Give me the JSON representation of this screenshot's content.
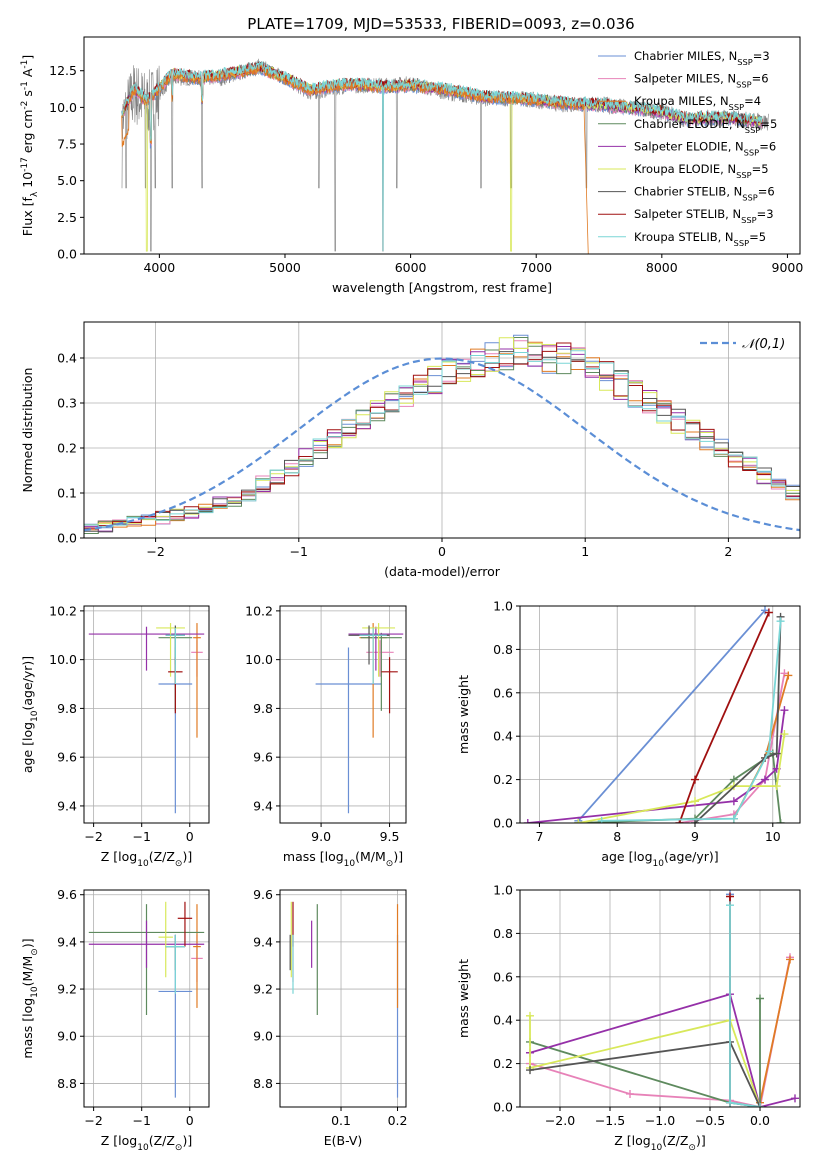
{
  "figure_title": "PLATE=1709, MJD=53533, FIBERID=0093, z=0.036",
  "series_styles": [
    {
      "name": "Chabrier MILES, N$_{SSP}$=3",
      "color": "#6a8fd4"
    },
    {
      "name": "Salpeter MILES, N$_{SSP}$=6",
      "color": "#e782b8"
    },
    {
      "name": "Kroupa MILES, N$_{SSP}$=4",
      "color": "#e07b24"
    },
    {
      "name": "Chabrier ELODIE, N$_{SSP}$=5",
      "color": "#5e8a5e"
    },
    {
      "name": "Salpeter ELODIE, N$_{SSP}$=6",
      "color": "#9530a8"
    },
    {
      "name": "Kroupa ELODIE, N$_{SSP}$=5",
      "color": "#d8e85a"
    },
    {
      "name": "Chabrier STELIB, N$_{SSP}$=6",
      "color": "#555555"
    },
    {
      "name": "Salpeter STELIB, N$_{SSP}$=3",
      "color": "#a01010"
    },
    {
      "name": "Kroupa STELIB, N$_{SSP}$=5",
      "color": "#7ad6d6"
    }
  ],
  "chart_data": [
    {
      "id": "spectrum",
      "type": "line",
      "title": "PLATE=1709, MJD=53533, FIBERID=0093, z=0.036",
      "xlabel": "wavelength [Angstrom, rest frame]",
      "ylabel": "Flux [f$_\\lambda$ 10$^{-17}$ erg cm$^{-2}$ s$^{-1}$ A$^{-1}$]",
      "xlim": [
        3400,
        9100
      ],
      "ylim": [
        0,
        14.8
      ],
      "xticks": [
        4000,
        5000,
        6000,
        7000,
        8000,
        9000
      ],
      "yticks": [
        0.0,
        2.5,
        5.0,
        7.5,
        10.0,
        12.5
      ],
      "legend": "upper right",
      "data_note": "observed spectrum (grey) with nine model fits; flux approx. 8-13 across 3700-8800 A",
      "observed": {
        "x": [
          3700,
          3800,
          3900,
          4000,
          4100,
          4300,
          4500,
          4800,
          5000,
          5200,
          5500,
          5800,
          6000,
          6300,
          6600,
          6900,
          7200,
          7500,
          7800,
          8000,
          8200,
          8500,
          8800
        ],
        "y": [
          9.0,
          11.0,
          10.2,
          11.0,
          12.0,
          12.0,
          12.0,
          12.8,
          12.0,
          11.0,
          11.5,
          11.5,
          11.6,
          11.0,
          10.6,
          10.6,
          10.2,
          10.2,
          9.9,
          9.7,
          9.2,
          9.3,
          9.0
        ]
      },
      "dips": [
        3700,
        3735,
        3890,
        3933,
        3968,
        4102,
        4340,
        5270,
        5400,
        5780,
        5890,
        6560,
        6800,
        7400
      ],
      "model_mean": {
        "x": [
          3700,
          3800,
          3900,
          4000,
          4100,
          4300,
          4500,
          4800,
          5000,
          5200,
          5500,
          5800,
          6000,
          6300,
          6600,
          6900,
          7200,
          7400
        ],
        "y": [
          9.5,
          11.3,
          10.4,
          11.3,
          12.3,
          12.0,
          12.2,
          12.7,
          12.0,
          11.2,
          11.6,
          11.4,
          11.5,
          11.2,
          10.7,
          10.6,
          10.3,
          10.2
        ]
      },
      "model_range_end": [
        8800,
        8800,
        7420,
        8800,
        8800,
        8800,
        8800,
        8800,
        8800
      ]
    },
    {
      "id": "residual_hist",
      "type": "bar",
      "xlabel": "(data-model)/error",
      "ylabel": "Normed distribution",
      "xlim": [
        -2.5,
        2.5
      ],
      "ylim": [
        0,
        0.48
      ],
      "xticks": [
        -2,
        -1,
        0,
        1,
        2
      ],
      "yticks": [
        0.0,
        0.1,
        0.2,
        0.3,
        0.4
      ],
      "grid": true,
      "legend": "upper right",
      "gaussian_label": "$\\mathcal{N}(0,1)$",
      "bin_width": 0.1,
      "bin_start": -2.5,
      "base_values": [
        0.02,
        0.025,
        0.03,
        0.035,
        0.04,
        0.045,
        0.05,
        0.055,
        0.065,
        0.075,
        0.085,
        0.1,
        0.12,
        0.14,
        0.16,
        0.18,
        0.2,
        0.22,
        0.24,
        0.26,
        0.28,
        0.3,
        0.31,
        0.33,
        0.35,
        0.37,
        0.38,
        0.39,
        0.4,
        0.41,
        0.42,
        0.41,
        0.4,
        0.4,
        0.39,
        0.38,
        0.36,
        0.34,
        0.32,
        0.3,
        0.28,
        0.26,
        0.24,
        0.22,
        0.2,
        0.18,
        0.16,
        0.14,
        0.12,
        0.1,
        0.09,
        0.08,
        0.07,
        0.06,
        0.05,
        0.045,
        0.04,
        0.035,
        0.03,
        0.028
      ]
    },
    {
      "id": "age_vs_Z",
      "type": "scatter",
      "xlabel": "Z [log$_{10}$(Z/Z$_\\odot$)]",
      "ylabel": "age  [log$_{10}$(age/yr)]",
      "xlim": [
        -2.2,
        0.4
      ],
      "ylim": [
        9.33,
        10.22
      ],
      "xticks": [
        -2,
        -1,
        0
      ],
      "yticks": [
        9.4,
        9.6,
        9.8,
        10.0,
        10.2
      ],
      "grid": true,
      "points": [
        {
          "series": 0,
          "x": -0.3,
          "xerr": 0.35,
          "y": 9.9,
          "yerr": [
            0.53,
            0.15
          ]
        },
        {
          "series": 1,
          "x": 0.15,
          "xerr": 0.12,
          "y": 10.03,
          "yerr": [
            0.1,
            0.05
          ]
        },
        {
          "series": 2,
          "x": 0.15,
          "xerr": 0.08,
          "y": 10.09,
          "yerr": [
            0.41,
            0.06
          ]
        },
        {
          "series": 3,
          "x": -0.3,
          "xerr": 0.35,
          "y": 10.09,
          "yerr": [
            0.3,
            0.02
          ]
        },
        {
          "series": 4,
          "x": -0.9,
          "xerr": 1.2,
          "y": 10.105,
          "yerr": [
            0.15,
            0.03
          ]
        },
        {
          "series": 5,
          "x": -0.4,
          "xerr": 0.3,
          "y": 10.13,
          "yerr": [
            0.2,
            0.02
          ]
        },
        {
          "series": 6,
          "x": -0.3,
          "xerr": 0.2,
          "y": 10.1,
          "yerr": [
            0.12,
            0.04
          ]
        },
        {
          "series": 7,
          "x": -0.3,
          "xerr": 0.15,
          "y": 9.95,
          "yerr": [
            0.17,
            0.06
          ]
        },
        {
          "series": 8,
          "x": -0.3,
          "xerr": 0.2,
          "y": 10.1,
          "yerr": [
            0.2,
            0.03
          ]
        }
      ]
    },
    {
      "id": "age_vs_mass",
      "type": "scatter",
      "xlabel": "mass [log$_{10}$(M/M$_\\odot$)]",
      "ylabel": "",
      "xlim": [
        8.7,
        9.62
      ],
      "ylim": [
        9.33,
        10.22
      ],
      "xticks": [
        9.0,
        9.5
      ],
      "yticks": [
        9.4,
        9.6,
        9.8,
        10.0,
        10.2
      ],
      "grid": true,
      "points": [
        {
          "series": 0,
          "x": 9.2,
          "xerr": 0.24,
          "y": 9.9,
          "yerr": [
            0.53,
            0.15
          ]
        },
        {
          "series": 1,
          "x": 9.43,
          "xerr": 0.1,
          "y": 10.03,
          "yerr": [
            0.1,
            0.05
          ]
        },
        {
          "series": 2,
          "x": 9.38,
          "xerr": 0.1,
          "y": 10.09,
          "yerr": [
            0.41,
            0.06
          ]
        },
        {
          "series": 3,
          "x": 9.44,
          "xerr": 0.15,
          "y": 10.09,
          "yerr": [
            0.3,
            0.02
          ]
        },
        {
          "series": 4,
          "x": 9.4,
          "xerr": 0.2,
          "y": 10.105,
          "yerr": [
            0.15,
            0.03
          ]
        },
        {
          "series": 5,
          "x": 9.42,
          "xerr": 0.12,
          "y": 10.13,
          "yerr": [
            0.2,
            0.02
          ]
        },
        {
          "series": 6,
          "x": 9.35,
          "xerr": 0.15,
          "y": 10.1,
          "yerr": [
            0.12,
            0.04
          ]
        },
        {
          "series": 7,
          "x": 9.5,
          "xerr": 0.06,
          "y": 9.95,
          "yerr": [
            0.17,
            0.06
          ]
        },
        {
          "series": 8,
          "x": 9.38,
          "xerr": 0.1,
          "y": 10.1,
          "yerr": [
            0.2,
            0.03
          ]
        }
      ]
    },
    {
      "id": "weight_vs_age",
      "type": "line",
      "xlabel": "age  [log$_{10}$(age/yr)]",
      "ylabel": "mass weight",
      "xlim": [
        6.75,
        10.35
      ],
      "ylim": [
        0,
        1.0
      ],
      "xticks": [
        7,
        8,
        9,
        10
      ],
      "yticks": [
        0.0,
        0.2,
        0.4,
        0.6,
        0.8,
        1.0
      ],
      "grid": true,
      "series": [
        {
          "series": 0,
          "x": [
            7.5,
            9.9
          ],
          "y": [
            0.01,
            0.98
          ]
        },
        {
          "series": 1,
          "x": [
            8.8,
            9.5,
            9.9,
            10.15
          ],
          "y": [
            0.0,
            0.04,
            0.2,
            0.69
          ]
        },
        {
          "series": 2,
          "x": [
            9.5,
            9.9,
            10.2
          ],
          "y": [
            0.02,
            0.3,
            0.68
          ]
        },
        {
          "series": 3,
          "x": [
            7.5,
            9.0,
            9.5,
            10.0,
            10.1
          ],
          "y": [
            0.0,
            0.02,
            0.2,
            0.32,
            0.0
          ]
        },
        {
          "series": 4,
          "x": [
            6.85,
            9.5,
            9.9,
            10.05,
            10.15
          ],
          "y": [
            0.0,
            0.1,
            0.2,
            0.25,
            0.52
          ]
        },
        {
          "series": 5,
          "x": [
            7.5,
            9.0,
            9.5,
            10.05,
            10.15
          ],
          "y": [
            0.0,
            0.1,
            0.17,
            0.17,
            0.41
          ]
        },
        {
          "series": 6,
          "x": [
            9.0,
            9.9,
            10.05,
            10.1
          ],
          "y": [
            0.0,
            0.3,
            0.32,
            0.95
          ]
        },
        {
          "series": 7,
          "x": [
            8.8,
            9.0,
            9.95
          ],
          "y": [
            0.0,
            0.2,
            0.97
          ]
        },
        {
          "series": 8,
          "x": [
            7.8,
            9.5,
            9.95,
            10.1
          ],
          "y": [
            0.01,
            0.02,
            0.33,
            0.93
          ]
        }
      ]
    },
    {
      "id": "mass_vs_Z",
      "type": "scatter",
      "xlabel": "Z [log$_{10}$(Z/Z$_\\odot$)]",
      "ylabel": "mass [log$_{10}$(M/M$_\\odot$)]",
      "xlim": [
        -2.2,
        0.4
      ],
      "ylim": [
        8.7,
        9.62
      ],
      "xticks": [
        -2,
        -1,
        0
      ],
      "yticks": [
        8.8,
        9.0,
        9.2,
        9.4,
        9.6
      ],
      "grid": true,
      "points": [
        {
          "series": 0,
          "x": -0.3,
          "xerr": 0.35,
          "y": 9.19,
          "yerr": [
            0.45,
            0.24
          ]
        },
        {
          "series": 1,
          "x": 0.15,
          "xerr": 0.12,
          "y": 9.33,
          "yerr": [
            0.1,
            0.1
          ]
        },
        {
          "series": 2,
          "x": 0.15,
          "xerr": 0.08,
          "y": 9.38,
          "yerr": [
            0.26,
            0.18
          ]
        },
        {
          "series": 3,
          "x": -0.9,
          "xerr": 1.2,
          "y": 9.44,
          "yerr": [
            0.35,
            0.12
          ]
        },
        {
          "series": 4,
          "x": -0.9,
          "xerr": 1.2,
          "y": 9.39,
          "yerr": [
            0.1,
            0.1
          ]
        },
        {
          "series": 5,
          "x": -0.5,
          "xerr": 0.15,
          "y": 9.42,
          "yerr": [
            0.17,
            0.15
          ]
        },
        {
          "series": 6,
          "x": -0.3,
          "xerr": 0.2,
          "y": 9.38,
          "yerr": [
            0.1,
            0.05
          ]
        },
        {
          "series": 7,
          "x": -0.1,
          "xerr": 0.15,
          "y": 9.5,
          "yerr": [
            0.12,
            0.07
          ]
        },
        {
          "series": 8,
          "x": -0.3,
          "xerr": 0.2,
          "y": 9.38,
          "yerr": [
            0.2,
            0.05
          ]
        }
      ]
    },
    {
      "id": "mass_vs_ebv",
      "type": "scatter",
      "xlabel": "E(B-V)",
      "ylabel": "",
      "xlim": [
        -0.008,
        0.215
      ],
      "ylim": [
        8.7,
        9.62
      ],
      "xticks": [
        0.1,
        0.2
      ],
      "yticks": [
        8.8,
        9.0,
        9.2,
        9.4,
        9.6
      ],
      "grid": true,
      "points": [
        {
          "series": 0,
          "x": 0.2,
          "y": 9.19,
          "yerr": [
            0.45,
            0.24
          ]
        },
        {
          "series": 1,
          "x": 0.015,
          "y": 9.33,
          "yerr": [
            0.1,
            0.1
          ]
        },
        {
          "series": 2,
          "x": 0.2,
          "y": 9.38,
          "yerr": [
            0.26,
            0.18
          ]
        },
        {
          "series": 3,
          "x": 0.058,
          "y": 9.44,
          "yerr": [
            0.35,
            0.12
          ]
        },
        {
          "series": 4,
          "x": 0.048,
          "y": 9.39,
          "yerr": [
            0.1,
            0.1
          ]
        },
        {
          "series": 5,
          "x": 0.012,
          "y": 9.42,
          "yerr": [
            0.17,
            0.15
          ]
        },
        {
          "series": 6,
          "x": 0.01,
          "y": 9.38,
          "yerr": [
            0.1,
            0.05
          ]
        },
        {
          "series": 7,
          "x": 0.015,
          "y": 9.5,
          "yerr": [
            0.12,
            0.07
          ]
        },
        {
          "series": 8,
          "x": 0.015,
          "y": 9.38,
          "yerr": [
            0.2,
            0.05
          ]
        }
      ]
    },
    {
      "id": "weight_vs_Z",
      "type": "line",
      "xlabel": "Z [log$_{10}$(Z/Z$_\\odot$)]",
      "ylabel": "mass weight",
      "xlim": [
        -2.4,
        0.4
      ],
      "ylim": [
        0,
        1.0
      ],
      "xticks": [
        -2.0,
        -1.5,
        -1.0,
        -0.5,
        0.0
      ],
      "yticks": [
        0.0,
        0.2,
        0.4,
        0.6,
        0.8,
        1.0
      ],
      "grid": true,
      "series": [
        {
          "series": 0,
          "x": [
            -0.3,
            -0.3,
            0.0
          ],
          "y": [
            0.98,
            0.02,
            0.0
          ]
        },
        {
          "series": 1,
          "x": [
            -2.3,
            -1.3,
            -0.3,
            0.0,
            0.3
          ],
          "y": [
            0.2,
            0.06,
            0.03,
            0.0,
            0.69
          ]
        },
        {
          "series": 2,
          "x": [
            0.0,
            0.3
          ],
          "y": [
            0.02,
            0.68
          ]
        },
        {
          "series": 3,
          "x": [
            -2.3,
            -0.3,
            0.0,
            0.0
          ],
          "y": [
            0.3,
            0.02,
            0.0,
            0.5
          ]
        },
        {
          "series": 4,
          "x": [
            -2.3,
            -0.3,
            0.0,
            0.35
          ],
          "y": [
            0.25,
            0.52,
            0.0,
            0.04
          ]
        },
        {
          "series": 5,
          "x": [
            -2.3,
            -2.3,
            -0.3,
            0.0
          ],
          "y": [
            0.42,
            0.18,
            0.4,
            0.0
          ]
        },
        {
          "series": 6,
          "x": [
            -2.3,
            -0.3,
            0.0
          ],
          "y": [
            0.17,
            0.3,
            0.0
          ]
        },
        {
          "series": 7,
          "x": [
            -0.3,
            -0.3
          ],
          "y": [
            0.97,
            0.02
          ]
        },
        {
          "series": 8,
          "x": [
            -0.3,
            -0.3,
            0.0
          ],
          "y": [
            0.93,
            0.02,
            0.0
          ]
        }
      ]
    }
  ]
}
